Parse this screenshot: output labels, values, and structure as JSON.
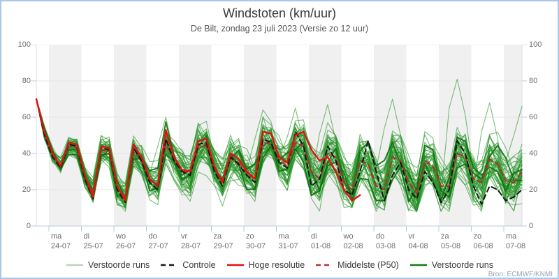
{
  "title": "Windstoten (km/uur)",
  "subtitle": "De Bilt, zondag 23 juli 2023 (Versie zo 12 uur)",
  "source": "Bron: ECMWF/KNMI",
  "colors": {
    "frame_border": "#a9c7e8",
    "band": "#f0f0f0",
    "gridline": "#e6e6e6",
    "axis": "#bcc8dc",
    "label_text": "#6e6e6e",
    "ensemble_green": "#249224",
    "ensemble_dark_green": "#0e6f0e",
    "control_black": "#151515",
    "hires_red": "#e01212",
    "median_dark_red": "#b03030"
  },
  "y_axis": {
    "min": 0,
    "max": 100,
    "ticks": [
      0,
      20,
      40,
      60,
      80,
      100
    ]
  },
  "x_axis": {
    "days": [
      {
        "weekday": "ma",
        "date": "24-07"
      },
      {
        "weekday": "di",
        "date": "25-07"
      },
      {
        "weekday": "wo",
        "date": "26-07"
      },
      {
        "weekday": "do",
        "date": "27-07"
      },
      {
        "weekday": "vr",
        "date": "28-07"
      },
      {
        "weekday": "za",
        "date": "29-07"
      },
      {
        "weekday": "zo",
        "date": "30-07"
      },
      {
        "weekday": "ma",
        "date": "31-07"
      },
      {
        "weekday": "di",
        "date": "01-08"
      },
      {
        "weekday": "wo",
        "date": "02-08"
      },
      {
        "weekday": "do",
        "date": "03-08"
      },
      {
        "weekday": "vr",
        "date": "04-08"
      },
      {
        "weekday": "za",
        "date": "05-08"
      },
      {
        "weekday": "zo",
        "date": "06-08"
      },
      {
        "weekday": "ma",
        "date": "07-08"
      }
    ]
  },
  "legend": {
    "items": [
      {
        "label": "Verstoorde runs",
        "color": "#b5d8b2",
        "dash": false
      },
      {
        "label": "Controle",
        "color": "#141414",
        "dash": true
      },
      {
        "label": "Hoge resolutie",
        "color": "#e01212",
        "dash": false
      },
      {
        "label": "Middelste (P50)",
        "color": "#b03535",
        "dash": true
      },
      {
        "label": "Verstoorde runs",
        "color": "#157a15",
        "dash": false
      }
    ]
  },
  "chart_data": {
    "type": "line",
    "title": "Windstoten (km/uur)",
    "subtitle": "De Bilt, zondag 23 juli 2023 (Versie zo 12 uur)",
    "unit": "km/uur",
    "ylim": [
      0,
      100
    ],
    "x_start": "zo 23-07 12:00",
    "x_step_hours": 6,
    "x_tick_labels": [
      "ma 24-07",
      "di 25-07",
      "wo 26-07",
      "do 27-07",
      "vr 28-07",
      "za 29-07",
      "zo 30-07",
      "ma 31-07",
      "di 01-08",
      "wo 02-08",
      "do 03-08",
      "vr 04-08",
      "za 05-08",
      "zo 06-08",
      "ma 07-08"
    ],
    "shaded_days": [
      "24-07",
      "26-07",
      "28-07",
      "30-07",
      "01-08",
      "03-08",
      "05-08",
      "07-08"
    ],
    "series": [
      {
        "name": "Hoge resolutie",
        "color": "#e01212",
        "style": "solid",
        "width": 2.4,
        "values": [
          70,
          52,
          40,
          33,
          46,
          45,
          28,
          16,
          44,
          43,
          22,
          14,
          45,
          38,
          26,
          22,
          53,
          38,
          31,
          30,
          47,
          48,
          33,
          24,
          40,
          37,
          30,
          26,
          52,
          51,
          38,
          35,
          50,
          52,
          42,
          36,
          38,
          30,
          20,
          14,
          17
        ]
      },
      {
        "name": "Controle",
        "color": "#151515",
        "style": "dashed",
        "width": 2,
        "values": [
          70,
          50,
          38,
          32,
          45,
          44,
          26,
          15,
          43,
          42,
          20,
          13,
          43,
          36,
          24,
          20,
          48,
          36,
          30,
          28,
          45,
          46,
          30,
          22,
          38,
          34,
          28,
          24,
          48,
          46,
          35,
          32,
          52,
          44,
          22,
          26,
          44,
          36,
          20,
          17,
          30,
          47,
          30,
          14,
          28,
          35,
          20,
          15,
          30,
          24,
          13,
          20,
          47,
          40,
          22,
          12,
          22,
          20,
          14,
          16,
          20
        ]
      },
      {
        "name": "Middelste (P50)",
        "color": "#b03030",
        "style": "dashed",
        "width": 2.1,
        "values": [
          70,
          51,
          39,
          33,
          44,
          43,
          27,
          19,
          42,
          41,
          21,
          16,
          41,
          36,
          25,
          23,
          45,
          37,
          31,
          28,
          44,
          44,
          32,
          25,
          37,
          35,
          29,
          26,
          46,
          45,
          36,
          33,
          46,
          44,
          30,
          26,
          40,
          38,
          24,
          20,
          36,
          34,
          22,
          20,
          38,
          36,
          24,
          18,
          36,
          33,
          22,
          22,
          40,
          38,
          26,
          24,
          37,
          34,
          25,
          24,
          30
        ]
      }
    ],
    "ensemble": {
      "name": "Verstoorde runs",
      "count": 50,
      "color": "#249224",
      "highlight_color": "#0e6f0e",
      "highlight_members": 2,
      "start_value": 70,
      "spread_min": 4,
      "spread_max": 17,
      "notable_peaks": [
        {
          "step": 52,
          "value": 81
        },
        {
          "step": 44,
          "value": 70
        },
        {
          "step": 16,
          "value": 60
        },
        {
          "step": 28,
          "value": 64
        },
        {
          "step": 32,
          "value": 65
        },
        {
          "step": 36,
          "value": 67
        },
        {
          "step": 56,
          "value": 68
        },
        {
          "step": 60,
          "value": 66
        }
      ]
    }
  }
}
